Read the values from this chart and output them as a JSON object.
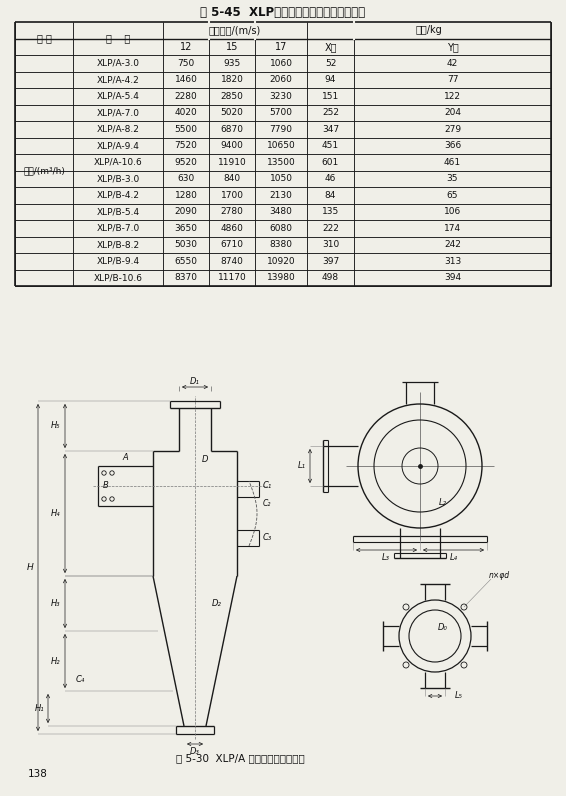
{
  "title": "表 5-45  XLP型旁路式旋风除尘器主要性能",
  "header1_col0": "项 目",
  "header1_col1": "规    格",
  "header1_speed": "进口气速/(m/s)",
  "header1_mass": "质量/kg",
  "header2_speeds": [
    "12",
    "15",
    "17"
  ],
  "header2_types": [
    "X型",
    "Y型"
  ],
  "col0_label": "气量/(m³/h)",
  "rows": [
    [
      "XLP/A-3.0",
      "750",
      "935",
      "1060",
      "52",
      "42"
    ],
    [
      "XLP/A-4.2",
      "1460",
      "1820",
      "2060",
      "94",
      "77"
    ],
    [
      "XLP/A-5.4",
      "2280",
      "2850",
      "3230",
      "151",
      "122"
    ],
    [
      "XLP/A-7.0",
      "4020",
      "5020",
      "5700",
      "252",
      "204"
    ],
    [
      "XLP/A-8.2",
      "5500",
      "6870",
      "7790",
      "347",
      "279"
    ],
    [
      "XLP/A-9.4",
      "7520",
      "9400",
      "10650",
      "451",
      "366"
    ],
    [
      "XLP/A-10.6",
      "9520",
      "11910",
      "13500",
      "601",
      "461"
    ],
    [
      "XLP/B-3.0",
      "630",
      "840",
      "1050",
      "46",
      "35"
    ],
    [
      "XLP/B-4.2",
      "1280",
      "1700",
      "2130",
      "84",
      "65"
    ],
    [
      "XLP/B-5.4",
      "2090",
      "2780",
      "3480",
      "135",
      "106"
    ],
    [
      "XLP/B-7.0",
      "3650",
      "4860",
      "6080",
      "222",
      "174"
    ],
    [
      "XLP/B-8.2",
      "5030",
      "6710",
      "8380",
      "310",
      "242"
    ],
    [
      "XLP/B-9.4",
      "6550",
      "8740",
      "10920",
      "397",
      "313"
    ],
    [
      "XLP/B-10.6",
      "8370",
      "11170",
      "13980",
      "498",
      "394"
    ]
  ],
  "fig_caption": "图 5-30  XLP/A 型旁路式旋风除尘器",
  "page_number": "138",
  "bg_color": "#f0efe8",
  "line_color": "#1a1a1a"
}
